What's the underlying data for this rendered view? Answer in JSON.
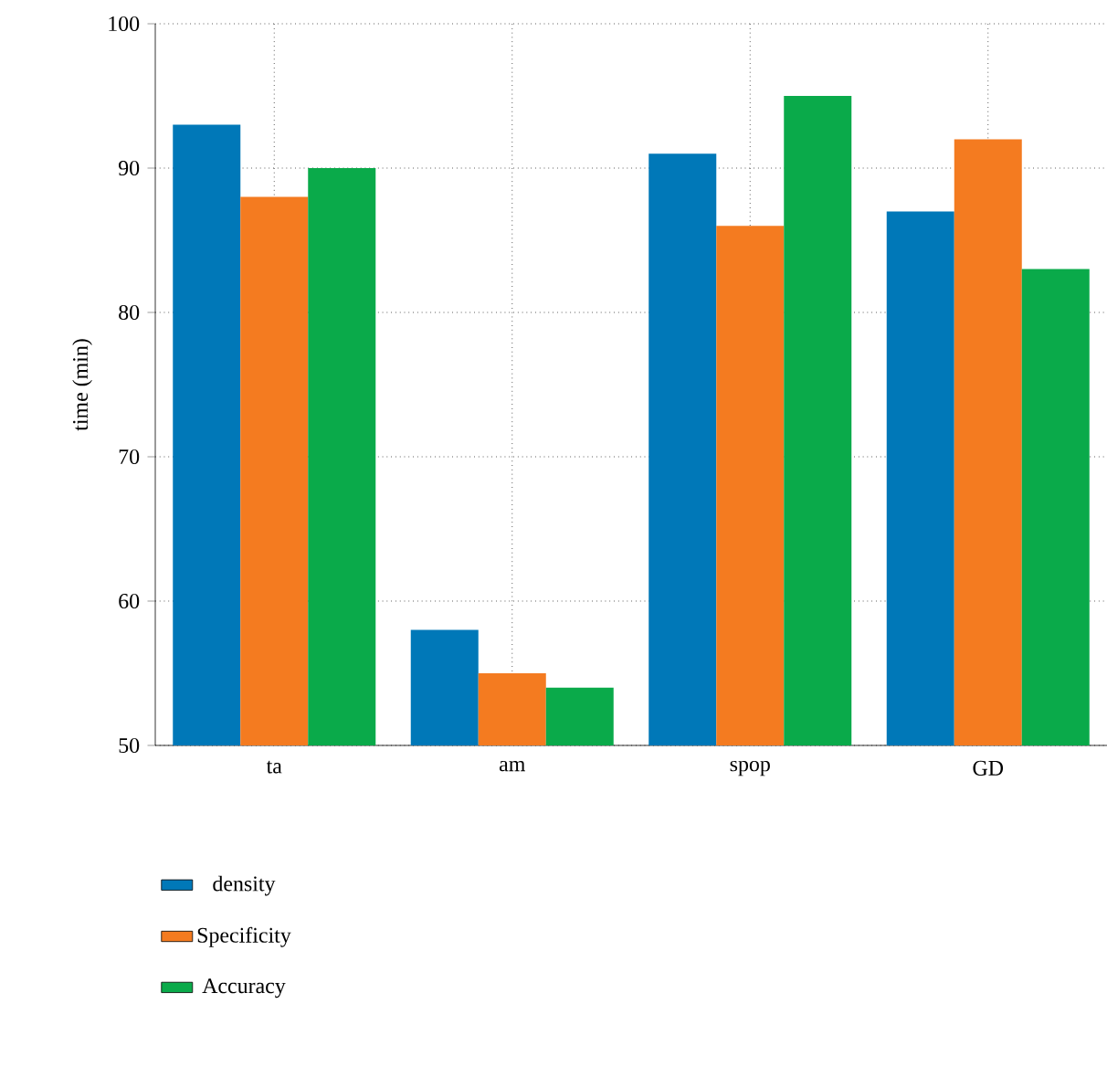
{
  "chart_data": {
    "type": "bar",
    "ylabel": "time (min)",
    "categories": [
      "ta",
      "am",
      "spop",
      "GD"
    ],
    "series": [
      {
        "name": "density",
        "color": "#0078b8",
        "values": [
          93,
          58,
          91,
          87
        ]
      },
      {
        "name": "Specificity",
        "color": "#f47b20",
        "values": [
          88,
          55,
          86,
          92
        ]
      },
      {
        "name": "Accuracy",
        "color": "#0aaa4a",
        "values": [
          90,
          54,
          95,
          83
        ]
      }
    ],
    "ylim": [
      50,
      100
    ],
    "yticks": [
      50,
      60,
      70,
      80,
      90,
      100
    ],
    "grid": true,
    "legend": "bottom left"
  }
}
